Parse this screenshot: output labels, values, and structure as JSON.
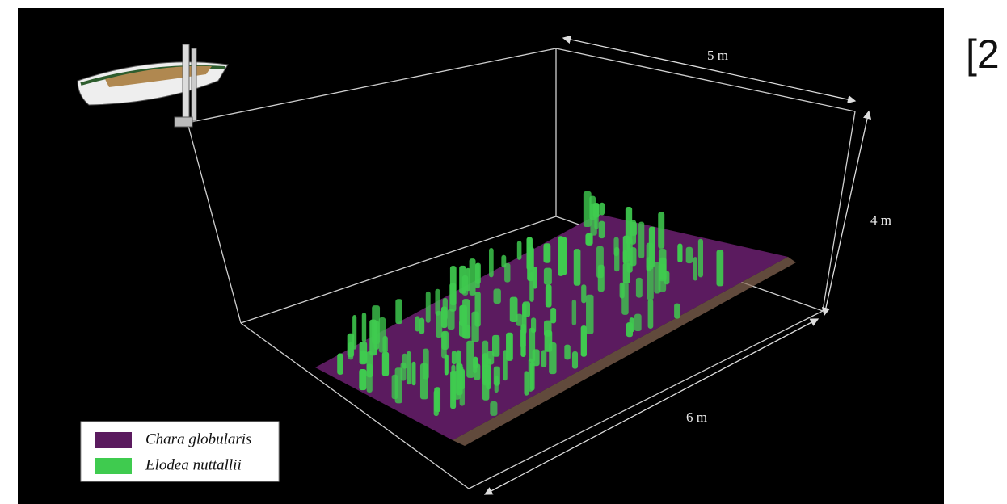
{
  "figure": {
    "dimensions": {
      "width": "5 m",
      "height": "4 m",
      "length": "6 m"
    },
    "legend": [
      {
        "label": "Chara globularis",
        "color": "#5b1b5f"
      },
      {
        "label": "Elodea nuttallii",
        "color": "#3fcb4f"
      }
    ]
  },
  "citation": "[2"
}
